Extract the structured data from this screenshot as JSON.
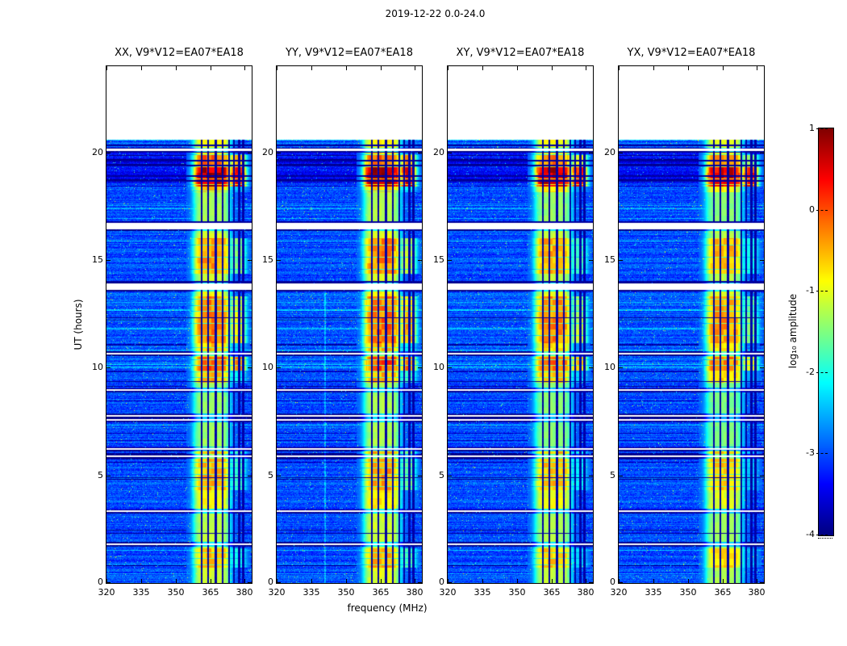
{
  "figure": {
    "title": "2019-12-22 0.0-24.0"
  },
  "chart_data": {
    "type": "heatmap",
    "title": "2019-12-22 0.0-24.0",
    "xlabel": "frequency (MHz)",
    "ylabel": "UT (hours)",
    "colormap": "jet",
    "xlim": [
      320,
      383
    ],
    "ylim": [
      0,
      24
    ],
    "xticks": [
      320,
      335,
      350,
      365,
      380
    ],
    "yticks": [
      0,
      5,
      10,
      15,
      20
    ],
    "grid": false,
    "panels": [
      {
        "title": "XX, V9*V12=EA07*EA18"
      },
      {
        "title": "YY, V9*V12=EA07*EA18"
      },
      {
        "title": "XY, V9*V12=EA07*EA18"
      },
      {
        "title": "YX, V9*V12=EA07*EA18"
      }
    ],
    "colorbar": {
      "label": "log₁₀ amplitude",
      "ticks": [
        1,
        0,
        -1,
        -2,
        -3,
        -4
      ],
      "vmin": -4,
      "vmax": 1,
      "position": "right"
    },
    "data_time_max_hours": 20.6,
    "background_log_amp": -3.0,
    "band": {
      "core_mhz": [
        358.0,
        373.5
      ],
      "extended_mhz": [
        373.5,
        380.5
      ]
    },
    "rfi_lines_mhz": [
      361.3,
      364.2,
      367.4,
      370.3,
      373.2,
      375.4,
      377.6,
      379.3
    ],
    "band_intensity_segments": [
      [
        0.0,
        0.7,
        -1.1
      ],
      [
        0.7,
        1.6,
        -0.55
      ],
      [
        1.6,
        3.4,
        -1.2
      ],
      [
        3.4,
        4.3,
        -0.85
      ],
      [
        4.3,
        6.3,
        -0.5
      ],
      [
        6.3,
        9.3,
        -1.35
      ],
      [
        9.3,
        9.85,
        -0.55
      ],
      [
        9.85,
        10.5,
        -0.1
      ],
      [
        10.5,
        11.15,
        -0.65
      ],
      [
        11.15,
        12.35,
        -0.25
      ],
      [
        12.35,
        13.3,
        -0.3
      ],
      [
        13.3,
        13.9,
        -0.9
      ],
      [
        13.9,
        14.35,
        -1.1
      ],
      [
        14.35,
        16.0,
        -0.4
      ],
      [
        16.0,
        16.55,
        -1.1
      ],
      [
        16.55,
        18.15,
        -1.3
      ],
      [
        18.15,
        18.4,
        -0.65
      ],
      [
        18.4,
        19.35,
        0.7
      ],
      [
        19.35,
        19.9,
        -0.2
      ],
      [
        19.9,
        20.6,
        -0.85
      ]
    ],
    "gaps_hours": [
      [
        1.76,
        1.84
      ],
      [
        3.3,
        3.38
      ],
      [
        5.85,
        5.93
      ],
      [
        6.18,
        6.26
      ],
      [
        7.52,
        7.62
      ],
      [
        7.72,
        7.8
      ],
      [
        8.92,
        9.0
      ],
      [
        10.6,
        10.7
      ],
      [
        13.6,
        13.92
      ],
      [
        16.42,
        16.72
      ],
      [
        20.08,
        20.16
      ]
    ],
    "dark_rows_hours": [
      [
        2.28,
        2.32
      ],
      [
        4.86,
        4.9
      ],
      [
        9.32,
        9.37
      ],
      [
        12.3,
        12.35
      ],
      [
        13.94,
        14.02
      ],
      [
        16.74,
        16.8
      ],
      [
        18.64,
        18.7
      ],
      [
        18.86,
        18.92
      ],
      [
        19.36,
        19.44
      ],
      [
        19.58,
        19.66
      ],
      [
        19.98,
        20.04
      ],
      [
        20.3,
        20.36
      ]
    ],
    "dim_rows_hours": [
      [
        18.55,
        20.2,
        -0.35
      ]
    ],
    "panel_amp_offset": [
      0,
      0.08,
      -0.08,
      -0.15
    ]
  }
}
